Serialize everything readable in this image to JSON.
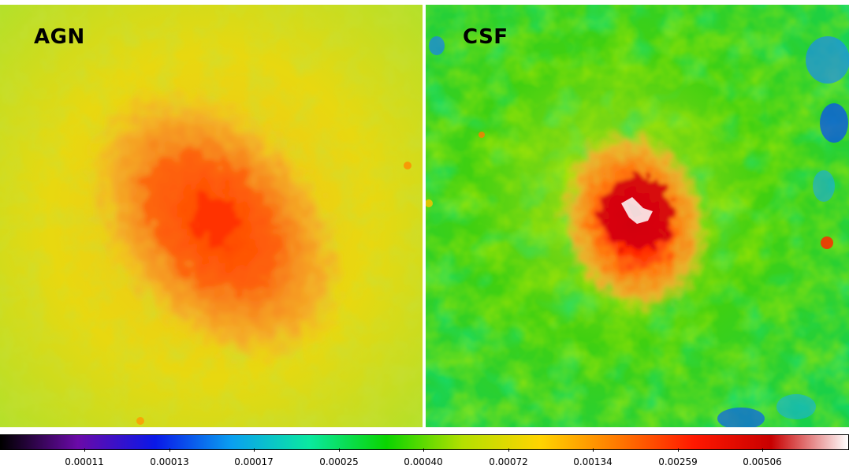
{
  "panels": [
    {
      "id": "agn",
      "label": "AGN"
    },
    {
      "id": "csf",
      "label": "CSF"
    }
  ],
  "colorbar": {
    "ticks": [
      "0.00011",
      "0.00013",
      "0.00017",
      "0.00025",
      "0.00040",
      "0.00072",
      "0.00134",
      "0.00259",
      "0.00506"
    ],
    "colormap": [
      "#000000",
      "#6a0aa8",
      "#0a18e8",
      "#0aa0f0",
      "#0ae8a0",
      "#0ad400",
      "#b4e000",
      "#ffd400",
      "#ff7a00",
      "#ff1800",
      "#c80000",
      "#ffffff"
    ]
  }
}
